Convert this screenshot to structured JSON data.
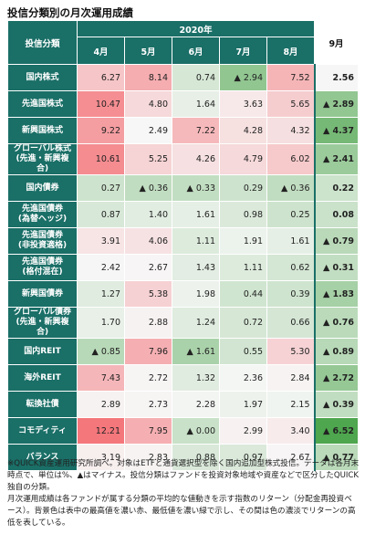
{
  "title": "投信分類別の月次運用成績",
  "header": {
    "corner": "投信分類",
    "year": "2020年",
    "last_label": "9月"
  },
  "chart_data": {
    "type": "table",
    "months": [
      "4月",
      "5月",
      "6月",
      "7月",
      "8月",
      "9月"
    ],
    "rows": [
      {
        "label": [
          "国内株式"
        ],
        "values": [
          "6.27",
          "8.14",
          "0.74",
          "▲ 2.94",
          "7.52",
          "2.56"
        ]
      },
      {
        "label": [
          "先進国株式"
        ],
        "values": [
          "10.47",
          "4.80",
          "1.64",
          "3.63",
          "5.65",
          "▲ 2.89"
        ]
      },
      {
        "label": [
          "新興国株式"
        ],
        "values": [
          "9.22",
          "2.49",
          "7.22",
          "4.28",
          "4.32",
          "▲ 4.37"
        ]
      },
      {
        "label": [
          "グローバル株式",
          "(先進・新興複合)"
        ],
        "values": [
          "10.61",
          "5.25",
          "4.26",
          "4.79",
          "6.02",
          "▲ 2.41"
        ]
      },
      {
        "label": [
          "国内債券"
        ],
        "values": [
          "0.27",
          "▲ 0.36",
          "▲ 0.33",
          "0.29",
          "▲ 0.36",
          "0.22"
        ]
      },
      {
        "label": [
          "先進国債券",
          "(為替ヘッジ)"
        ],
        "values": [
          "0.87",
          "1.40",
          "1.61",
          "0.98",
          "0.25",
          "0.08"
        ]
      },
      {
        "label": [
          "先進国債券",
          "(非投資適格)"
        ],
        "values": [
          "3.91",
          "4.06",
          "1.11",
          "1.91",
          "1.61",
          "▲ 0.79"
        ]
      },
      {
        "label": [
          "先進国債券",
          "(格付混在)"
        ],
        "values": [
          "2.42",
          "2.67",
          "1.43",
          "1.11",
          "0.62",
          "▲ 0.31"
        ]
      },
      {
        "label": [
          "新興国債券"
        ],
        "values": [
          "1.27",
          "5.38",
          "1.98",
          "0.44",
          "0.39",
          "▲ 1.83"
        ]
      },
      {
        "label": [
          "グローバル債券",
          "(先進・新興複合)"
        ],
        "values": [
          "1.70",
          "2.88",
          "1.24",
          "0.72",
          "0.66",
          "▲ 0.76"
        ]
      },
      {
        "label": [
          "国内REIT"
        ],
        "values": [
          "▲ 0.85",
          "7.96",
          "▲ 1.61",
          "0.55",
          "5.30",
          "▲ 0.89"
        ]
      },
      {
        "label": [
          "海外REIT"
        ],
        "values": [
          "7.43",
          "2.72",
          "1.32",
          "2.36",
          "2.84",
          "▲ 2.72"
        ]
      },
      {
        "label": [
          "転換社債"
        ],
        "values": [
          "2.89",
          "2.73",
          "2.28",
          "1.97",
          "2.15",
          "▲ 0.39"
        ]
      },
      {
        "label": [
          "コモディティ"
        ],
        "values": [
          "12.21",
          "7.95",
          "▲ 0.00",
          "2.99",
          "3.40",
          "▲ 6.52"
        ]
      },
      {
        "label": [
          "バランス"
        ],
        "values": [
          "3.19",
          "2.83",
          "0.88",
          "0.97",
          "2.67",
          "▲ 0.77"
        ]
      }
    ]
  },
  "notes": [
    "※QUICK資産運用研究所調べ。対象はETFと通貨選択型を除く国内追加型株式投信。データは各月末時点で、単位は%、▲はマイナス。投信分類はファンドを投資対象地域や資産などで区分したQUICK独自の分類。",
    "月次運用成績は各ファンドが属する分類の平均的な値動きを示す指数のリターン（分配金再投資ベース）。背景色は表中の最高値を濃い赤、最低値を濃い緑で示し、その間は色の濃淡でリターンの高低を表している。"
  ],
  "colors": {
    "header_bg": "#1a6f67",
    "scale_low": "#4ea64e",
    "scale_mid": "#f7f7f7",
    "scale_high": "#f4777c"
  }
}
